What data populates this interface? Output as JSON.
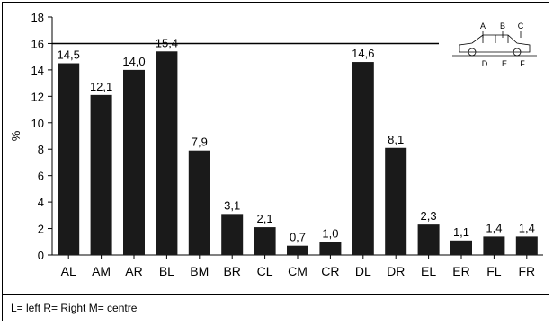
{
  "chart_data": {
    "type": "bar",
    "title": "",
    "xlabel": "",
    "ylabel": "%",
    "ylim": [
      0,
      18
    ],
    "yticks": [
      0,
      2,
      4,
      6,
      8,
      10,
      12,
      14,
      16,
      18
    ],
    "grid": "none",
    "reference_line": 16,
    "bar_color": "#1a1a1a",
    "categories": [
      "AL",
      "AM",
      "AR",
      "BL",
      "BM",
      "BR",
      "CL",
      "CM",
      "CR",
      "DL",
      "DR",
      "EL",
      "ER",
      "FL",
      "FR"
    ],
    "values": [
      14.5,
      12.1,
      14.0,
      15.4,
      7.9,
      3.1,
      2.1,
      0.7,
      1.0,
      14.6,
      8.1,
      2.3,
      1.1,
      1.4,
      1.4
    ],
    "data_labels": [
      "14,5",
      "12,1",
      "14,0",
      "15,4",
      "7,9",
      "3,1",
      "2,1",
      "0,7",
      "1,0",
      "14,6",
      "8,1",
      "2,3",
      "1,1",
      "1,4",
      "1,4"
    ]
  },
  "inset": {
    "top_labels": [
      "A",
      "B",
      "C"
    ],
    "bottom_labels": [
      "D",
      "E",
      "F"
    ]
  },
  "footnote": "L= left R= Right M= centre"
}
